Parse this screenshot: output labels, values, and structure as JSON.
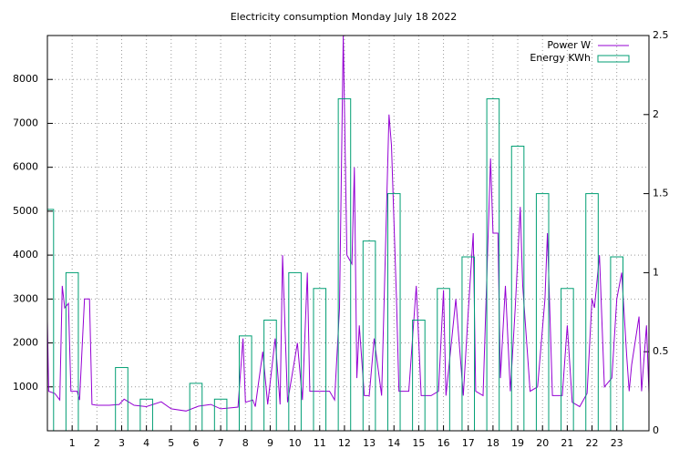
{
  "chart_data": {
    "type": "line",
    "title": "Electricity consumption Monday July 18 2022",
    "xlim": [
      0,
      24.3
    ],
    "xticks": [
      1,
      2,
      3,
      4,
      5,
      6,
      7,
      8,
      9,
      10,
      11,
      12,
      13,
      14,
      15,
      16,
      17,
      18,
      19,
      20,
      21,
      22,
      23
    ],
    "ylim": [
      0,
      9000
    ],
    "yticks": [
      1000,
      2000,
      3000,
      4000,
      5000,
      6000,
      7000,
      8000
    ],
    "y2lim": [
      0,
      2.5
    ],
    "y2ticks": [
      0,
      0.5,
      1,
      1.5,
      2,
      2.5
    ],
    "grid": true,
    "legend": "top-right",
    "series": [
      {
        "name": "Power W",
        "color": "#9400d3",
        "x": [
          0,
          0.05,
          0.3,
          0.5,
          0.6,
          0.7,
          0.85,
          0.95,
          1.2,
          1.3,
          1.5,
          1.7,
          1.8,
          2,
          2.5,
          2.9,
          3.1,
          3.5,
          4,
          4.6,
          5,
          5.6,
          6.1,
          6.6,
          7,
          7.7,
          7.9,
          8,
          8.3,
          8.4,
          8.7,
          8.9,
          9.2,
          9.4,
          9.5,
          9.7,
          10.1,
          10.3,
          10.5,
          10.6,
          11,
          11.4,
          11.6,
          11.8,
          11.95,
          12.1,
          12.3,
          12.4,
          12.5,
          12.6,
          12.8,
          13,
          13.2,
          13.5,
          13.8,
          13.9,
          14.1,
          14.2,
          14.6,
          14.9,
          15.1,
          15.5,
          15.8,
          16,
          16.1,
          16.5,
          16.8,
          17,
          17.2,
          17.3,
          17.6,
          17.9,
          18,
          18.2,
          18.3,
          18.5,
          18.7,
          18.9,
          19.1,
          19.2,
          19.5,
          19.8,
          20.1,
          20.2,
          20.4,
          20.8,
          21,
          21.2,
          21.5,
          21.8,
          22,
          22.1,
          22.3,
          22.5,
          22.8,
          23,
          23.2,
          23.4,
          23.5,
          23.6,
          23.9,
          24,
          24.2,
          24.3
        ],
        "values": [
          2500,
          900,
          850,
          700,
          3300,
          2800,
          2900,
          900,
          900,
          700,
          3000,
          3000,
          600,
          580,
          580,
          600,
          720,
          580,
          550,
          660,
          500,
          450,
          560,
          600,
          500,
          540,
          2100,
          650,
          700,
          550,
          1800,
          600,
          2100,
          600,
          4000,
          650,
          2000,
          700,
          3600,
          900,
          900,
          900,
          700,
          2800,
          9000,
          4000,
          3800,
          6000,
          1200,
          2400,
          800,
          800,
          2100,
          800,
          7200,
          6500,
          3000,
          900,
          900,
          3300,
          800,
          800,
          900,
          3200,
          800,
          3000,
          800,
          2700,
          4500,
          900,
          800,
          6200,
          4500,
          4500,
          1200,
          3300,
          900,
          2800,
          5100,
          3300,
          900,
          1000,
          3000,
          4500,
          800,
          800,
          2400,
          650,
          550,
          850,
          3000,
          2800,
          4000,
          1000,
          1200,
          3000,
          3600,
          1700,
          900,
          1500,
          2600,
          900,
          2400,
          850
        ]
      },
      {
        "name": "Energy KWh",
        "color": "#009e73",
        "axis": "y2",
        "x": [
          0,
          1,
          2,
          3,
          4,
          5,
          6,
          7,
          8,
          9,
          10,
          11,
          12,
          13,
          14,
          15,
          16,
          17,
          18,
          19,
          20,
          21,
          22,
          23
        ],
        "values": [
          1.4,
          1.0,
          0,
          0.4,
          0.2,
          0,
          0.3,
          0.2,
          0.6,
          0.7,
          1.0,
          0.9,
          2.1,
          1.2,
          1.5,
          0.7,
          0.9,
          1.1,
          2.1,
          1.8,
          1.5,
          0.9,
          1.5,
          1.1
        ]
      }
    ]
  }
}
